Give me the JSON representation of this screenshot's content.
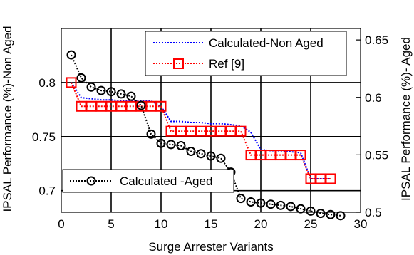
{
  "chart_data": {
    "type": "line",
    "xlabel": "Surge Arrester Variants",
    "ylabel_left": "IPSAL Performance (%)-Non Aged",
    "ylabel_right": "IPSAL Performance (%)- Aged",
    "xlim": [
      0,
      30
    ],
    "ylim_left": [
      0.68,
      0.85
    ],
    "ylim_right": [
      0.5,
      0.66
    ],
    "x_ticks": [
      0,
      5,
      10,
      15,
      20,
      25,
      30
    ],
    "y_ticks_left": [
      0.7,
      0.75,
      0.8
    ],
    "y_ticks_right": [
      0.5,
      0.55,
      0.6,
      0.65
    ],
    "grid": true,
    "series": [
      {
        "name": "Calculated-Non Aged",
        "axis": "left",
        "color": "#0000ff",
        "style": "dotted",
        "x": [
          1,
          2,
          3,
          4,
          5,
          6,
          7,
          8,
          9,
          10,
          11,
          12,
          13,
          14,
          15,
          16,
          17,
          18,
          19,
          20,
          21,
          22,
          23,
          24,
          25,
          26,
          27
        ],
        "y": [
          0.8,
          0.786,
          0.785,
          0.784,
          0.784,
          0.783,
          0.783,
          0.783,
          0.783,
          0.778,
          0.764,
          0.764,
          0.763,
          0.763,
          0.762,
          0.762,
          0.761,
          0.76,
          0.754,
          0.738,
          0.737,
          0.737,
          0.736,
          0.735,
          0.711,
          0.711,
          0.711
        ]
      },
      {
        "name": "Ref [9]",
        "axis": "left",
        "color": "#ff0000",
        "style": "dotted",
        "marker": "square",
        "x": [
          1,
          2,
          3,
          4,
          5,
          6,
          7,
          8,
          9,
          10,
          11,
          12,
          13,
          14,
          15,
          16,
          17,
          18,
          19,
          20,
          21,
          22,
          23,
          24,
          25,
          26,
          27
        ],
        "y": [
          0.8,
          0.778,
          0.778,
          0.778,
          0.778,
          0.778,
          0.778,
          0.778,
          0.778,
          0.778,
          0.755,
          0.755,
          0.755,
          0.755,
          0.755,
          0.755,
          0.755,
          0.755,
          0.733,
          0.733,
          0.733,
          0.733,
          0.733,
          0.733,
          0.711,
          0.711,
          0.711
        ]
      },
      {
        "name": "Calculated -Aged",
        "axis": "right",
        "color": "#000000",
        "style": "dotted",
        "marker": "circle",
        "x": [
          1,
          2,
          3,
          4,
          5,
          6,
          7,
          8,
          9,
          10,
          11,
          12,
          13,
          14,
          15,
          16,
          17,
          18,
          19,
          20,
          21,
          22,
          23,
          24,
          25,
          26,
          27,
          28
        ],
        "y": [
          0.637,
          0.617,
          0.609,
          0.606,
          0.605,
          0.603,
          0.601,
          0.593,
          0.568,
          0.56,
          0.559,
          0.558,
          0.553,
          0.551,
          0.549,
          0.547,
          0.535,
          0.512,
          0.509,
          0.508,
          0.507,
          0.506,
          0.505,
          0.503,
          0.501,
          0.499,
          0.498,
          0.497
        ]
      }
    ],
    "legend": [
      {
        "label": "Calculated-Non Aged",
        "series": 0,
        "placement": "top-right"
      },
      {
        "label": "Ref [9]",
        "series": 1,
        "placement": "top-right"
      },
      {
        "label": "Calculated -Aged",
        "series": 2,
        "placement": "bottom-left"
      }
    ]
  }
}
